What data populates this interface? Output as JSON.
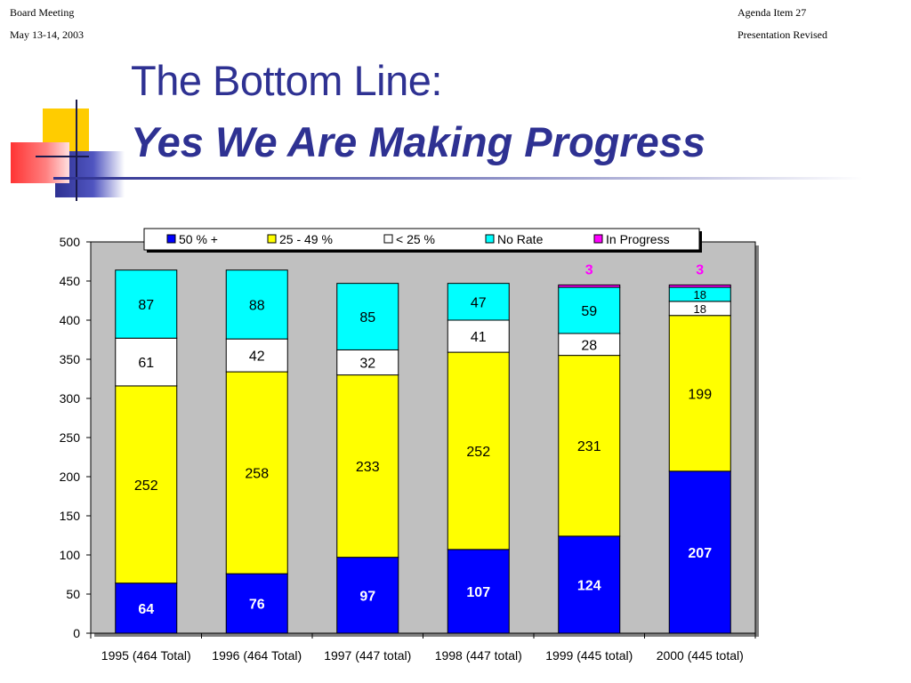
{
  "header": {
    "left_line1": "Board Meeting",
    "left_line2": "May 13-14, 2003",
    "right_line1": "Agenda Item 27",
    "right_line2": "Presentation Revised"
  },
  "slide": {
    "title_line1": "The Bottom Line:",
    "title_line2": "Yes We Are Making Progress"
  },
  "colors": {
    "title": "#2e3192",
    "plot_background": "#c0c0c0",
    "s_50_plus": "#0000ff",
    "s_25_49": "#ffff00",
    "s_lt_25": "#ffffff",
    "s_no_rate": "#00ffff",
    "s_in_progress": "#ff00ff"
  },
  "chart_data": {
    "type": "bar",
    "stacked": true,
    "categories": [
      "1995 (464 Total)",
      "1996 (464 Total)",
      "1997 (447 total)",
      "1998 (447 total)",
      "1999 (445 total)",
      "2000 (445 total)"
    ],
    "series": [
      {
        "name": "50 % +",
        "color": "#0000ff",
        "values": [
          64,
          76,
          97,
          107,
          124,
          207
        ]
      },
      {
        "name": "25 - 49 %",
        "color": "#ffff00",
        "values": [
          252,
          258,
          233,
          252,
          231,
          199
        ]
      },
      {
        "name": "< 25 %",
        "color": "#ffffff",
        "values": [
          61,
          42,
          32,
          41,
          28,
          18
        ]
      },
      {
        "name": "No Rate",
        "color": "#00ffff",
        "values": [
          87,
          88,
          85,
          47,
          59,
          18
        ]
      },
      {
        "name": "In Progress",
        "color": "#ff00ff",
        "values": [
          0,
          0,
          0,
          0,
          3,
          3
        ]
      }
    ],
    "ylim": [
      0,
      500
    ],
    "yticks": [
      0,
      50,
      100,
      150,
      200,
      250,
      300,
      350,
      400,
      450,
      500
    ],
    "title": "",
    "xlabel": "",
    "ylabel": "",
    "legend_position": "top",
    "grid": false
  }
}
